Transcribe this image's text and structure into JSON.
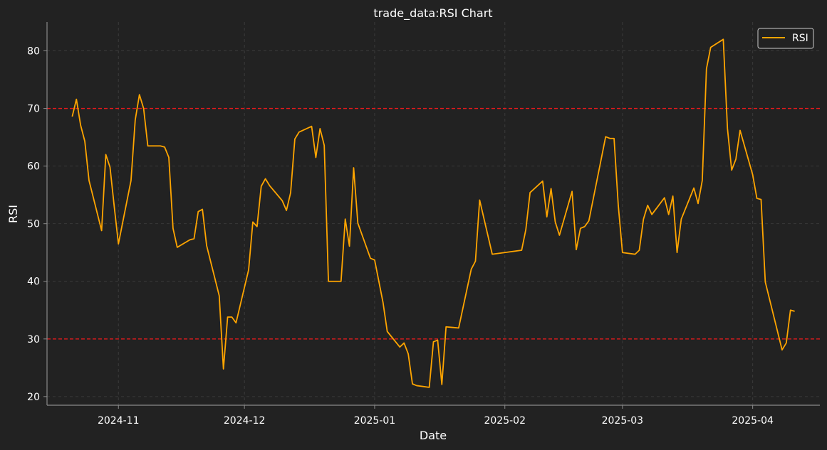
{
  "chart_data": {
    "type": "line",
    "title": "trade_data:RSI Chart",
    "xlabel": "Date",
    "ylabel": "RSI",
    "xlim": [
      "2024-10-15",
      "2025-04-17"
    ],
    "ylim": [
      18.5,
      85
    ],
    "x_ticks": [
      "2024-11",
      "2024-12",
      "2025-01",
      "2025-02",
      "2025-03",
      "2025-04"
    ],
    "y_ticks": [
      20,
      30,
      40,
      50,
      60,
      70,
      80
    ],
    "grid": true,
    "legend_position": "top-right",
    "thresholds": [
      {
        "value": 70,
        "color": "#e41a1c",
        "style": "dashed"
      },
      {
        "value": 30,
        "color": "#e41a1c",
        "style": "dashed"
      }
    ],
    "series": [
      {
        "name": "RSI",
        "color": "#ffa500",
        "points": [
          [
            "2024-10-21",
            68.6
          ],
          [
            "2024-10-22",
            71.6
          ],
          [
            "2024-10-23",
            67.1
          ],
          [
            "2024-10-24",
            64.3
          ],
          [
            "2024-10-25",
            57.5
          ],
          [
            "2024-10-28",
            48.8
          ],
          [
            "2024-10-29",
            62.0
          ],
          [
            "2024-10-30",
            59.8
          ],
          [
            "2024-10-31",
            53.0
          ],
          [
            "2024-11-01",
            46.5
          ],
          [
            "2024-11-04",
            57.5
          ],
          [
            "2024-11-05",
            68.0
          ],
          [
            "2024-11-06",
            72.4
          ],
          [
            "2024-11-07",
            70.0
          ],
          [
            "2024-11-08",
            63.5
          ],
          [
            "2024-11-11",
            63.5
          ],
          [
            "2024-11-12",
            63.3
          ],
          [
            "2024-11-13",
            61.5
          ],
          [
            "2024-11-14",
            49.2
          ],
          [
            "2024-11-15",
            45.9
          ],
          [
            "2024-11-18",
            47.2
          ],
          [
            "2024-11-19",
            47.4
          ],
          [
            "2024-11-20",
            52.1
          ],
          [
            "2024-11-21",
            52.5
          ],
          [
            "2024-11-22",
            46.2
          ],
          [
            "2024-11-25",
            37.5
          ],
          [
            "2024-11-26",
            24.8
          ],
          [
            "2024-11-27",
            33.8
          ],
          [
            "2024-11-28",
            33.8
          ],
          [
            "2024-11-29",
            32.8
          ],
          [
            "2024-12-02",
            42.0
          ],
          [
            "2024-12-03",
            50.3
          ],
          [
            "2024-12-04",
            49.5
          ],
          [
            "2024-12-05",
            56.5
          ],
          [
            "2024-12-06",
            57.8
          ],
          [
            "2024-12-07",
            56.6
          ],
          [
            "2024-12-10",
            54.0
          ],
          [
            "2024-12-11",
            52.3
          ],
          [
            "2024-12-12",
            55.4
          ],
          [
            "2024-12-13",
            64.7
          ],
          [
            "2024-12-14",
            65.9
          ],
          [
            "2024-12-17",
            66.9
          ],
          [
            "2024-12-18",
            61.5
          ],
          [
            "2024-12-19",
            66.5
          ],
          [
            "2024-12-20",
            63.6
          ],
          [
            "2024-12-21",
            40.0
          ],
          [
            "2024-12-24",
            40.0
          ],
          [
            "2024-12-25",
            50.8
          ],
          [
            "2024-12-26",
            46.1
          ],
          [
            "2024-12-27",
            59.7
          ],
          [
            "2024-12-28",
            50.1
          ],
          [
            "2024-12-31",
            44.0
          ],
          [
            "2025-01-01",
            43.7
          ],
          [
            "2025-01-03",
            36.3
          ],
          [
            "2025-01-04",
            31.3
          ],
          [
            "2025-01-07",
            28.6
          ],
          [
            "2025-01-08",
            29.3
          ],
          [
            "2025-01-09",
            27.4
          ],
          [
            "2025-01-10",
            22.2
          ],
          [
            "2025-01-11",
            21.9
          ],
          [
            "2025-01-14",
            21.6
          ],
          [
            "2025-01-15",
            29.5
          ],
          [
            "2025-01-16",
            29.8
          ],
          [
            "2025-01-17",
            22.1
          ],
          [
            "2025-01-18",
            32.1
          ],
          [
            "2025-01-21",
            31.9
          ],
          [
            "2025-01-24",
            42.1
          ],
          [
            "2025-01-25",
            43.5
          ],
          [
            "2025-01-26",
            54.1
          ],
          [
            "2025-01-29",
            44.7
          ],
          [
            "2025-02-05",
            45.4
          ],
          [
            "2025-02-06",
            49.0
          ],
          [
            "2025-02-07",
            55.4
          ],
          [
            "2025-02-10",
            57.4
          ],
          [
            "2025-02-11",
            51.2
          ],
          [
            "2025-02-12",
            56.1
          ],
          [
            "2025-02-13",
            50.3
          ],
          [
            "2025-02-14",
            48.0
          ],
          [
            "2025-02-17",
            55.6
          ],
          [
            "2025-02-18",
            45.5
          ],
          [
            "2025-02-19",
            49.2
          ],
          [
            "2025-02-20",
            49.5
          ],
          [
            "2025-02-21",
            50.5
          ],
          [
            "2025-02-25",
            65.1
          ],
          [
            "2025-02-26",
            64.8
          ],
          [
            "2025-02-27",
            64.8
          ],
          [
            "2025-02-28",
            53.2
          ],
          [
            "2025-03-01",
            45.0
          ],
          [
            "2025-03-04",
            44.7
          ],
          [
            "2025-03-05",
            45.4
          ],
          [
            "2025-03-06",
            50.8
          ],
          [
            "2025-03-07",
            53.2
          ],
          [
            "2025-03-08",
            51.6
          ],
          [
            "2025-03-11",
            54.5
          ],
          [
            "2025-03-12",
            51.6
          ],
          [
            "2025-03-13",
            54.8
          ],
          [
            "2025-03-14",
            45.0
          ],
          [
            "2025-03-15",
            50.8
          ],
          [
            "2025-03-18",
            56.2
          ],
          [
            "2025-03-19",
            53.5
          ],
          [
            "2025-03-20",
            57.5
          ],
          [
            "2025-03-21",
            76.9
          ],
          [
            "2025-03-22",
            80.6
          ],
          [
            "2025-03-25",
            82.0
          ],
          [
            "2025-03-26",
            66.5
          ],
          [
            "2025-03-27",
            59.3
          ],
          [
            "2025-03-28",
            61.2
          ],
          [
            "2025-03-29",
            66.2
          ],
          [
            "2025-04-01",
            58.5
          ],
          [
            "2025-04-02",
            54.4
          ],
          [
            "2025-04-03",
            54.2
          ],
          [
            "2025-04-04",
            39.9
          ],
          [
            "2025-04-08",
            28.1
          ],
          [
            "2025-04-09",
            29.3
          ],
          [
            "2025-04-10",
            35.0
          ],
          [
            "2025-04-11",
            34.8
          ]
        ]
      }
    ]
  }
}
